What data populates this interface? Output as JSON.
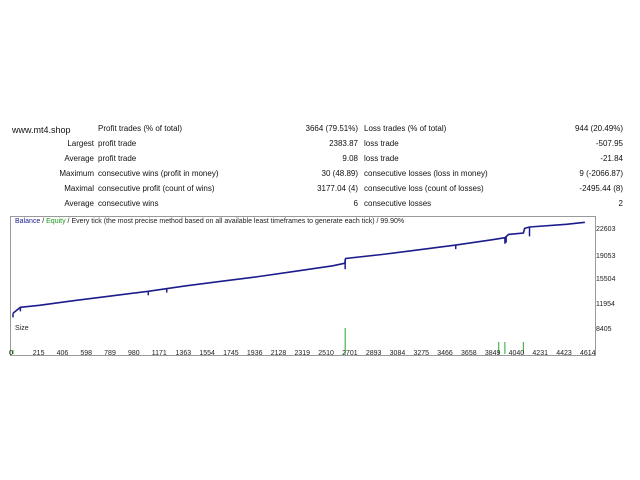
{
  "watermark": "www.mt4.shop",
  "stats": [
    {
      "label1": "Profit trades (% of total)",
      "value1": "3664 (79.51%)",
      "label2": "Loss trades (% of total)",
      "value2": "944 (20.49%)",
      "lead": ""
    },
    {
      "lead": "Largest",
      "label1": "profit trade",
      "value1": "2383.87",
      "label2": "loss trade",
      "value2": "-507.95"
    },
    {
      "lead": "Average",
      "label1": "profit trade",
      "value1": "9.08",
      "label2": "loss trade",
      "value2": "-21.84"
    },
    {
      "lead": "Maximum",
      "label1": "consecutive wins (profit in money)",
      "value1": "30 (48.89)",
      "label2": "consecutive losses (loss in money)",
      "value2": "9 (-2066.87)"
    },
    {
      "lead": "Maximal",
      "label1": "consecutive profit (count of wins)",
      "value1": "3177.04 (4)",
      "label2": "consecutive loss (count of losses)",
      "value2": "-2495.44 (8)"
    },
    {
      "lead": "Average",
      "label1": "consecutive wins",
      "value1": "6",
      "label2": "consecutive losses",
      "value2": "2"
    }
  ],
  "chart": {
    "legend_balance": "Balance",
    "legend_sep": " / ",
    "legend_equity": "Equity",
    "legend_rest": " / Every tick (the most precise method based on all available least timeframes to generate each tick) / 99.90%",
    "size_label": "Size",
    "colors": {
      "balance": "#1c1c8c",
      "equity": "#2aa52a",
      "border": "#9a9a9a"
    }
  },
  "chart_data": {
    "type": "line",
    "series": [
      {
        "name": "Balance",
        "x": [
          0,
          60,
          215,
          500,
          800,
          1100,
          1400,
          1700,
          2000,
          2300,
          2600,
          2700,
          2701,
          2705,
          3000,
          3300,
          3600,
          3900,
          4000,
          4030,
          4150,
          4160,
          4200,
          4500,
          4650
        ],
        "y": [
          9400,
          10300,
          10600,
          11300,
          12000,
          12700,
          13500,
          14200,
          14900,
          15700,
          16500,
          16900,
          17400,
          17600,
          18200,
          18900,
          19600,
          20400,
          20700,
          21200,
          21400,
          22100,
          22300,
          22700,
          23000
        ]
      }
    ],
    "drawdowns_x": [
      0,
      60,
      1100,
      1250,
      2701,
      3600,
      4000,
      4010,
      4200
    ],
    "size_spikes_x": [
      0,
      2701,
      3950,
      4000,
      4150
    ],
    "xticks": [
      "0",
      "215",
      "406",
      "598",
      "789",
      "980",
      "1171",
      "1363",
      "1554",
      "1745",
      "1936",
      "2128",
      "2319",
      "2510",
      "2701",
      "2893",
      "3084",
      "3275",
      "3466",
      "3658",
      "3849",
      "4040",
      "4231",
      "4423",
      "4614"
    ],
    "yticks": [
      "22603",
      "19053",
      "15504",
      "11954",
      "8405"
    ],
    "xlim": [
      0,
      4700
    ],
    "ylim": [
      8405,
      22900
    ],
    "grid": false
  }
}
